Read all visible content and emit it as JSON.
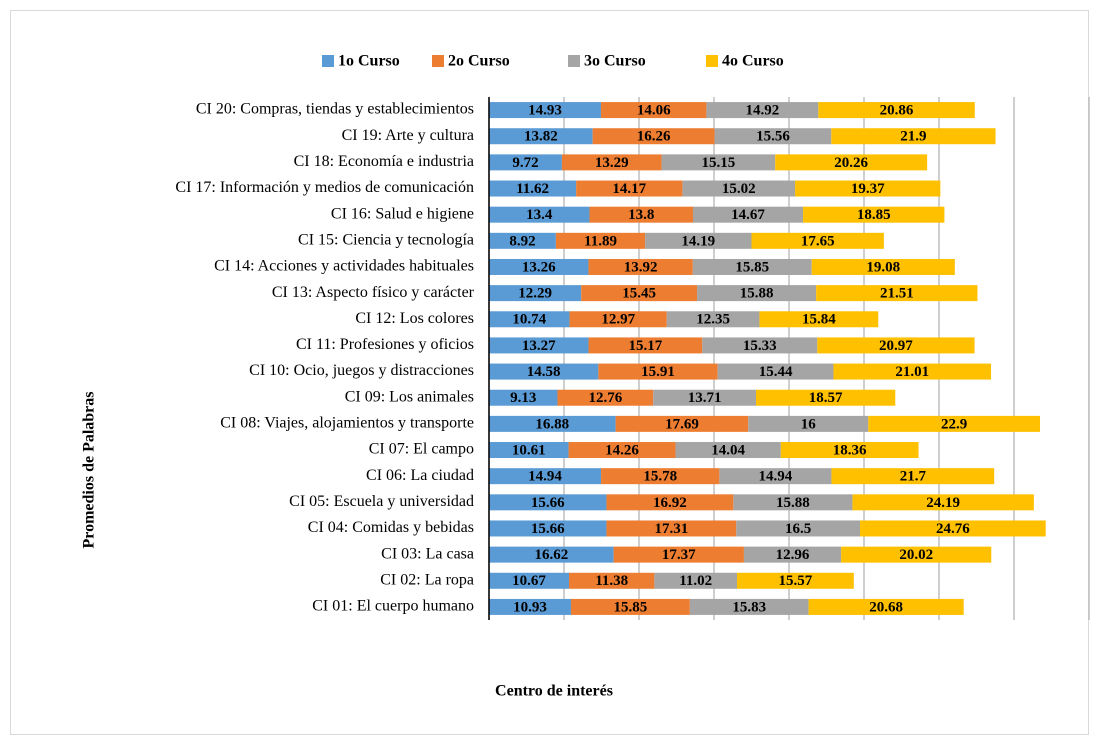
{
  "chart_data": {
    "type": "stacked-bar-horizontal",
    "x_label": "Centro de interés",
    "y_label": "Promedios de Palabras",
    "categories": [
      "CI 20: Compras, tiendas y establecimientos",
      "CI 19: Arte y cultura",
      "CI 18: Economía e industria",
      "CI 17: Información y medios de comunicación",
      "CI 16: Salud e higiene",
      "CI 15: Ciencia y tecnología",
      "CI 14: Acciones y actividades habituales",
      "CI 13: Aspecto físico y carácter",
      "CI 12: Los colores",
      "CI 11: Profesiones y oficios",
      "CI 10: Ocio, juegos y distracciones",
      "CI 09: Los animales",
      "CI 08: Viajes, alojamientos y transporte",
      "CI 07: El campo",
      "CI 06: La ciudad",
      "CI 05: Escuela y universidad",
      "CI 04: Comidas y bebidas",
      "CI 03: La casa",
      "CI 02: La ropa",
      "CI 01: El cuerpo humano"
    ],
    "series": [
      {
        "name": "1o Curso",
        "color": "#5b9bd5",
        "values": [
          14.93,
          13.82,
          9.72,
          11.62,
          13.4,
          8.92,
          13.26,
          12.29,
          10.74,
          13.27,
          14.58,
          9.13,
          16.88,
          10.61,
          14.94,
          15.66,
          15.66,
          16.62,
          10.67,
          10.93
        ]
      },
      {
        "name": "2o Curso",
        "color": "#ed7d31",
        "values": [
          14.06,
          16.26,
          13.29,
          14.17,
          13.8,
          11.89,
          13.92,
          15.45,
          12.97,
          15.17,
          15.91,
          12.76,
          17.69,
          14.26,
          15.78,
          16.92,
          17.31,
          17.37,
          11.38,
          15.85
        ]
      },
      {
        "name": "3o Curso",
        "color": "#a5a5a5",
        "values": [
          14.92,
          15.56,
          15.15,
          15.02,
          14.67,
          14.19,
          15.85,
          15.88,
          12.35,
          15.33,
          15.44,
          13.71,
          16,
          14.04,
          14.94,
          15.88,
          16.5,
          12.96,
          11.02,
          15.83
        ]
      },
      {
        "name": "4o Curso",
        "color": "#ffc000",
        "values": [
          20.86,
          21.9,
          20.26,
          19.37,
          18.85,
          17.65,
          19.08,
          21.51,
          15.84,
          20.97,
          21.01,
          18.57,
          22.9,
          18.36,
          21.7,
          24.19,
          24.76,
          20.02,
          15.57,
          20.68
        ]
      }
    ],
    "xlim": [
      0,
      80
    ],
    "xticks": [
      0,
      10,
      20,
      30,
      40,
      50,
      60,
      70,
      80
    ],
    "grid": true,
    "legend": "top"
  }
}
